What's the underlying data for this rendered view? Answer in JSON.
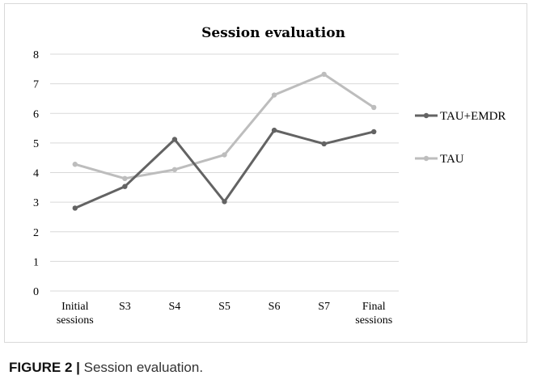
{
  "chart_data": {
    "type": "line",
    "title": "Session evaluation",
    "categories": [
      [
        "Initial",
        "sessions"
      ],
      [
        "S3"
      ],
      [
        "S4"
      ],
      [
        "S5"
      ],
      [
        "S6"
      ],
      [
        "S7"
      ],
      [
        "Final",
        "sessions"
      ]
    ],
    "ylim": [
      0,
      8
    ],
    "yticks": [
      0,
      1,
      2,
      3,
      4,
      5,
      6,
      7,
      8
    ],
    "grid": true,
    "legend_position": "right",
    "series": [
      {
        "name": "TAU+EMDR",
        "color": "#636363",
        "values": [
          2.8,
          3.53,
          5.12,
          3.02,
          5.43,
          4.97,
          5.38
        ]
      },
      {
        "name": "TAU",
        "color": "#bdbdbd",
        "values": [
          4.28,
          3.8,
          4.1,
          4.6,
          6.62,
          7.32,
          6.2
        ]
      }
    ]
  },
  "caption": {
    "label": "FIGURE 2 |",
    "text": " Session evaluation."
  }
}
